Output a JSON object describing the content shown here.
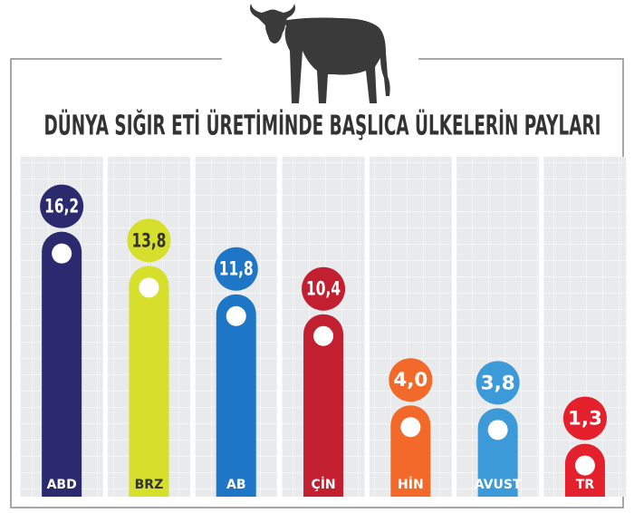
{
  "chart_data": {
    "type": "bar",
    "title": "DÜNYA SIĞIR ETİ ÜRETİMİNDE BAŞLICA ÜLKELERİN PAYLARI",
    "categories": [
      "ABD",
      "BRZ",
      "AB",
      "ÇİN",
      "HİN",
      "AVUST",
      "TR"
    ],
    "values": [
      16.2,
      13.8,
      11.8,
      10.4,
      4.0,
      3.8,
      1.3
    ],
    "value_labels": [
      "16,2",
      "13,8",
      "11,8",
      "10,4",
      "4,0",
      "3,8",
      "1,3"
    ],
    "colors": [
      "#2b2a6e",
      "#d6df2b",
      "#1e77c6",
      "#c21f30",
      "#f2692a",
      "#3c9ad8",
      "#e3202c"
    ]
  }
}
